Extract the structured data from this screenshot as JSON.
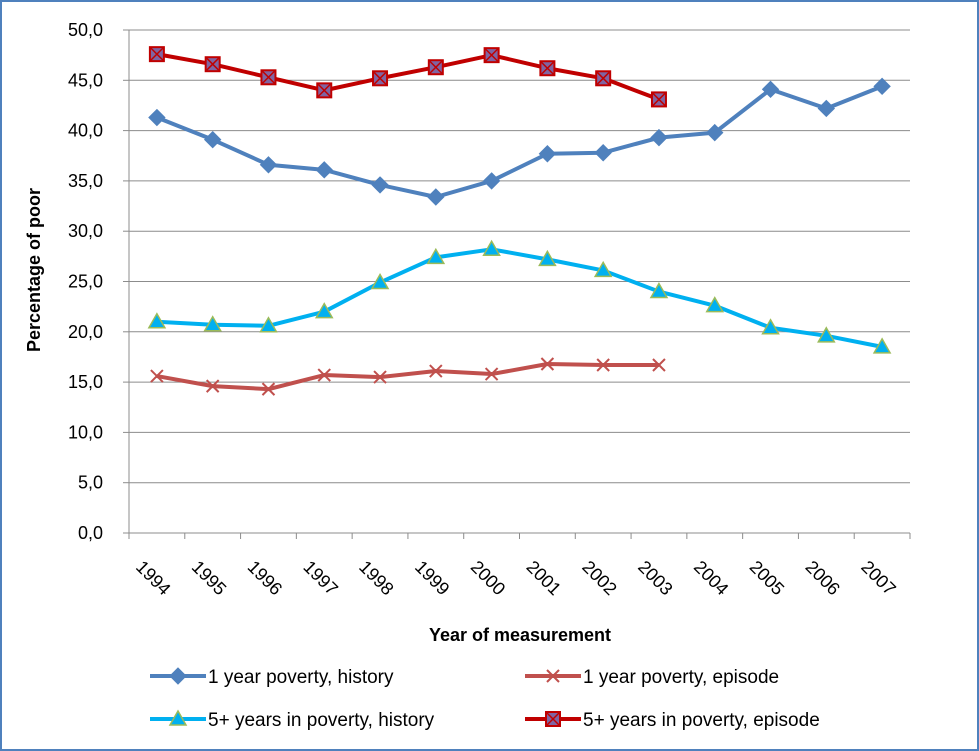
{
  "chart_data": {
    "type": "line",
    "title": "",
    "xlabel": "Year of measurement",
    "ylabel": "Percentage of poor",
    "categories": [
      "1994",
      "1995",
      "1996",
      "1997",
      "1998",
      "1999",
      "2000",
      "2001",
      "2002",
      "2003",
      "2004",
      "2005",
      "2006",
      "2007"
    ],
    "ylim": [
      0,
      50
    ],
    "yticks": [
      "0,0",
      "5,0",
      "10,0",
      "15,0",
      "20,0",
      "25,0",
      "30,0",
      "35,0",
      "40,0",
      "45,0",
      "50,0"
    ],
    "grid": true,
    "legend_position": "bottom",
    "series": [
      {
        "name": "1 year poverty, history",
        "color": "#4f81bd",
        "marker": "diamond",
        "values": [
          41.3,
          39.1,
          36.6,
          36.1,
          34.6,
          33.4,
          35.0,
          37.7,
          37.8,
          39.3,
          39.8,
          44.1,
          42.2,
          44.4
        ]
      },
      {
        "name": "1 year poverty, episode",
        "color": "#c0504d",
        "marker": "x",
        "values": [
          15.6,
          14.6,
          14.3,
          15.7,
          15.5,
          16.1,
          15.8,
          16.8,
          16.7,
          16.7,
          null,
          null,
          null,
          null
        ]
      },
      {
        "name": "5+ years in poverty, history",
        "color": "#00b0f0",
        "marker": "triangle",
        "values": [
          21.0,
          20.7,
          20.6,
          22.0,
          24.9,
          27.4,
          28.2,
          27.2,
          26.1,
          24.0,
          22.6,
          20.4,
          19.6,
          18.5
        ]
      },
      {
        "name": "5+ years in poverty, episode",
        "color": "#c00000",
        "marker": "square",
        "values": [
          47.6,
          46.6,
          45.3,
          44.0,
          45.2,
          46.3,
          47.5,
          46.2,
          45.2,
          43.1,
          null,
          null,
          null,
          null
        ]
      }
    ]
  }
}
